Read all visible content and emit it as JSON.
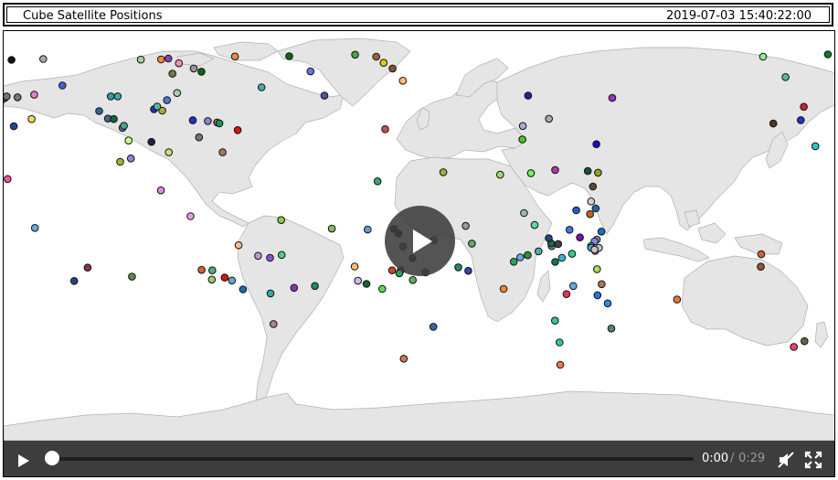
{
  "header": {
    "title": "Cube Satellite Positions",
    "timestamp": "2019-07-03 15:40:22:00"
  },
  "video": {
    "current_time": "0:00",
    "separator": "/",
    "duration": "0:29",
    "progress": 0,
    "muted": true
  },
  "icons": {
    "play_overlay": "play-icon",
    "play_control": "play-icon",
    "volume": "volume-muted-icon",
    "fullscreen": "fullscreen-icon"
  },
  "colors": {
    "ocean": "#ffffff",
    "land": "#e5e5e5",
    "land_stroke": "#b0b0b0",
    "controls_bg": "#3d3d3d",
    "overlay_bg": "#3c3c3c"
  },
  "satellites": [
    {
      "lon": -176.6,
      "lat": 78.1,
      "color": "#111111"
    },
    {
      "lon": -162.9,
      "lat": 78.5,
      "color": "#aaaaaa"
    },
    {
      "lon": -154.6,
      "lat": 66.8,
      "color": "#4466cc"
    },
    {
      "lon": -181.5,
      "lat": 59.4,
      "color": "#1a2a8c"
    },
    {
      "lon": -179.6,
      "lat": 61.2,
      "color": "#9a1f5a"
    },
    {
      "lon": -178.7,
      "lat": 62.0,
      "color": "#777777"
    },
    {
      "lon": -174.0,
      "lat": 61.6,
      "color": "#777777"
    },
    {
      "lon": -166.8,
      "lat": 62.7,
      "color": "#ee77cc"
    },
    {
      "lon": -167.9,
      "lat": 52.0,
      "color": "#eedd55"
    },
    {
      "lon": -175.6,
      "lat": 48.8,
      "color": "#224499"
    },
    {
      "lon": -178.3,
      "lat": 25.5,
      "color": "#ff4fa0"
    },
    {
      "lon": -166.5,
      "lat": 3.9,
      "color": "#66aadd"
    },
    {
      "lon": -143.7,
      "lat": -13.6,
      "color": "#883344"
    },
    {
      "lon": -124.5,
      "lat": -17.6,
      "color": "#668844"
    },
    {
      "lon": -149.5,
      "lat": -19.5,
      "color": "#224488"
    },
    {
      "lon": -125.0,
      "lat": 34.6,
      "color": "#8888cc"
    },
    {
      "lon": -129.6,
      "lat": 33.1,
      "color": "#99bb33"
    },
    {
      "lon": -108.6,
      "lat": 37.3,
      "color": "#c8e070"
    },
    {
      "lon": -112.0,
      "lat": 20.5,
      "color": "#dd88dd"
    },
    {
      "lon": -128.6,
      "lat": 48.1,
      "color": "#6677cc"
    },
    {
      "lon": -138.7,
      "lat": 55.5,
      "color": "#336699"
    },
    {
      "lon": -134.9,
      "lat": 52.2,
      "color": "#446688"
    },
    {
      "lon": -132.4,
      "lat": 52.0,
      "color": "#116633"
    },
    {
      "lon": -133.7,
      "lat": 62.0,
      "color": "#3399aa"
    },
    {
      "lon": -130.7,
      "lat": 62.0,
      "color": "#44aaaa"
    },
    {
      "lon": -128.0,
      "lat": 49.0,
      "color": "#44aa88"
    },
    {
      "lon": -126.0,
      "lat": 42.5,
      "color": "#ccff88"
    },
    {
      "lon": -120.7,
      "lat": 78.2,
      "color": "#aaccaa"
    },
    {
      "lon": -111.9,
      "lat": 78.3,
      "color": "#ee8844"
    },
    {
      "lon": -107.0,
      "lat": 72.0,
      "color": "#777744"
    },
    {
      "lon": -104.2,
      "lat": 76.6,
      "color": "#ff88bb"
    },
    {
      "lon": -97.8,
      "lat": 74.3,
      "color": "#999999"
    },
    {
      "lon": -108.8,
      "lat": 78.7,
      "color": "#8844aa"
    },
    {
      "lon": -94.5,
      "lat": 72.9,
      "color": "#116611"
    },
    {
      "lon": -80.0,
      "lat": 79.6,
      "color": "#ee8844"
    },
    {
      "lon": -68.5,
      "lat": 66.0,
      "color": "#44aaaa"
    },
    {
      "lon": -56.5,
      "lat": 79.7,
      "color": "#116611"
    },
    {
      "lon": -47.3,
      "lat": 73.0,
      "color": "#6677ee"
    },
    {
      "lon": -28.0,
      "lat": 80.4,
      "color": "#44aa44"
    },
    {
      "lon": -41.3,
      "lat": 62.3,
      "color": "#4455aa"
    },
    {
      "lon": -18.9,
      "lat": 79.5,
      "color": "#996633"
    },
    {
      "lon": -15.7,
      "lat": 76.8,
      "color": "#ddcc11"
    },
    {
      "lon": -11.8,
      "lat": 74.3,
      "color": "#885522"
    },
    {
      "lon": -7.4,
      "lat": 68.9,
      "color": "#ffbb77"
    },
    {
      "lon": -15.0,
      "lat": 47.5,
      "color": "#bb5555"
    },
    {
      "lon": -105.0,
      "lat": 63.5,
      "color": "#aaccaa"
    },
    {
      "lon": -95.5,
      "lat": 43.9,
      "color": "#777777"
    },
    {
      "lon": -91.7,
      "lat": 51.1,
      "color": "#8888cc"
    },
    {
      "lon": -87.7,
      "lat": 50.5,
      "color": "#aa7744"
    },
    {
      "lon": -98.2,
      "lat": 51.4,
      "color": "#2233bb"
    },
    {
      "lon": -116.1,
      "lat": 41.9,
      "color": "#222244"
    },
    {
      "lon": -115.0,
      "lat": 56.3,
      "color": "#2233aa"
    },
    {
      "lon": -109.4,
      "lat": 60.3,
      "color": "#5577cc"
    },
    {
      "lon": -111.4,
      "lat": 55.7,
      "color": "#aaaa44"
    },
    {
      "lon": -113.6,
      "lat": 57.5,
      "color": "#55bb99"
    },
    {
      "lon": -86.7,
      "lat": 50.1,
      "color": "#119955"
    },
    {
      "lon": -78.8,
      "lat": 47.1,
      "color": "#dd1111"
    },
    {
      "lon": -85.3,
      "lat": 37.3,
      "color": "#aa7755"
    },
    {
      "lon": -99.2,
      "lat": 9.1,
      "color": "#ee99dd"
    },
    {
      "lon": -94.4,
      "lat": -14.6,
      "color": "#cc6633"
    },
    {
      "lon": -89.8,
      "lat": -14.8,
      "color": "#55aa77"
    },
    {
      "lon": -90.0,
      "lat": -18.9,
      "color": "#99cc66"
    },
    {
      "lon": -81.3,
      "lat": -19.3,
      "color": "#66aacc"
    },
    {
      "lon": -84.4,
      "lat": -18.0,
      "color": "#dd1111"
    },
    {
      "lon": -76.5,
      "lat": -23.2,
      "color": "#2266aa"
    },
    {
      "lon": -63.3,
      "lat": -38.5,
      "color": "#aa8888"
    },
    {
      "lon": -60.0,
      "lat": 7.4,
      "color": "#88cc44"
    },
    {
      "lon": -59.8,
      "lat": -8.0,
      "color": "#55cc88"
    },
    {
      "lon": -78.4,
      "lat": -3.7,
      "color": "#ffbb88"
    },
    {
      "lon": -70.0,
      "lat": -8.4,
      "color": "#bb99cc"
    },
    {
      "lon": -64.8,
      "lat": -9.3,
      "color": "#8855cc"
    },
    {
      "lon": -54.4,
      "lat": -22.5,
      "color": "#8833bb"
    },
    {
      "lon": -64.6,
      "lat": -25.0,
      "color": "#33aaaa"
    },
    {
      "lon": -45.4,
      "lat": -21.7,
      "color": "#228866"
    },
    {
      "lon": -38.1,
      "lat": 3.6,
      "color": "#88bb55"
    },
    {
      "lon": -28.2,
      "lat": -13.1,
      "color": "#ffbb77"
    },
    {
      "lon": -26.8,
      "lat": -19.4,
      "color": "#ccbbee"
    },
    {
      "lon": -23.1,
      "lat": -20.8,
      "color": "#116633"
    },
    {
      "lon": -12.0,
      "lat": -14.8,
      "color": "#cc4422"
    },
    {
      "lon": -8.3,
      "lat": -14.8,
      "color": "#aa22cc"
    },
    {
      "lon": -3.1,
      "lat": -19.1,
      "color": "#66aa66"
    },
    {
      "lon": 5.8,
      "lat": -39.7,
      "color": "#3366aa"
    },
    {
      "lon": -7.0,
      "lat": -53.8,
      "color": "#cc7755"
    },
    {
      "lon": -22.6,
      "lat": 3.2,
      "color": "#6699cc"
    },
    {
      "lon": -16.3,
      "lat": -23.0,
      "color": "#55dd55"
    },
    {
      "lon": -11.3,
      "lat": 3.5,
      "color": "#333333"
    },
    {
      "lon": -9.3,
      "lat": 1.4,
      "color": "#222222"
    },
    {
      "lon": -7.3,
      "lat": -4.3,
      "color": "#2255cc"
    },
    {
      "lon": 6.1,
      "lat": -1.5,
      "color": "#bb44cc"
    },
    {
      "lon": -3.2,
      "lat": -9.4,
      "color": "#221155"
    },
    {
      "lon": 16.6,
      "lat": -13.5,
      "color": "#228866"
    },
    {
      "lon": 2.4,
      "lat": -15.7,
      "color": "#224499"
    },
    {
      "lon": 19.8,
      "lat": 4.8,
      "color": "#999999"
    },
    {
      "lon": 22.5,
      "lat": -3.0,
      "color": "#66aa66"
    },
    {
      "lon": 20.9,
      "lat": -15.0,
      "color": "#3344aa"
    },
    {
      "lon": -18.3,
      "lat": 24.5,
      "color": "#33aa66"
    },
    {
      "lon": -8.9,
      "lat": -16.1,
      "color": "#22aa55"
    },
    {
      "lon": 44.3,
      "lat": 43.0,
      "color": "#44cc22"
    },
    {
      "lon": 34.7,
      "lat": 27.4,
      "color": "#99dd66"
    },
    {
      "lon": 46.6,
      "lat": -8.1,
      "color": "#229933"
    },
    {
      "lon": 44.5,
      "lat": 48.9,
      "color": "#aaaadd"
    },
    {
      "lon": 48.0,
      "lat": 28.1,
      "color": "#77ee66"
    },
    {
      "lon": 45.0,
      "lat": 10.5,
      "color": "#99bbaa"
    },
    {
      "lon": 49.6,
      "lat": 5.2,
      "color": "#55dd99"
    },
    {
      "lon": 51.3,
      "lat": -6.4,
      "color": "#55aaaa"
    },
    {
      "lon": 57.0,
      "lat": -4.1,
      "color": "#669966"
    },
    {
      "lon": 59.8,
      "lat": -3.2,
      "color": "#444444"
    },
    {
      "lon": 56.8,
      "lat": -2.9,
      "color": "#226644"
    },
    {
      "lon": 58.5,
      "lat": 29.5,
      "color": "#bb33aa"
    },
    {
      "lon": 76.3,
      "lat": 40.9,
      "color": "#1111cc"
    },
    {
      "lon": 55.8,
      "lat": 52.1,
      "color": "#aaaaaa"
    },
    {
      "lon": 46.8,
      "lat": 62.3,
      "color": "#222299"
    },
    {
      "lon": 83.2,
      "lat": 61.3,
      "color": "#9933cc"
    },
    {
      "lon": 77.0,
      "lat": 28.3,
      "color": "#88aa22"
    },
    {
      "lon": 72.6,
      "lat": 29.0,
      "color": "#115533"
    },
    {
      "lon": 74.8,
      "lat": 22.2,
      "color": "#664433"
    },
    {
      "lon": 74.0,
      "lat": 15.6,
      "color": "#ddcccc"
    },
    {
      "lon": 73.6,
      "lat": 10.0,
      "color": "#bb6622"
    },
    {
      "lon": 76.0,
      "lat": 12.5,
      "color": "#2266aa"
    },
    {
      "lon": 78.5,
      "lat": 2.3,
      "color": "#2266cc"
    },
    {
      "lon": 76.5,
      "lat": -1.2,
      "color": "#8888cc"
    },
    {
      "lon": 75.5,
      "lat": -2.0,
      "color": "#8888dd"
    },
    {
      "lon": 74.0,
      "lat": -4.1,
      "color": "#33aaaa"
    },
    {
      "lon": 74.0,
      "lat": -4.8,
      "color": "#33aacc"
    },
    {
      "lon": 75.8,
      "lat": -6.2,
      "color": "#ffaaaa"
    },
    {
      "lon": 77.4,
      "lat": -4.9,
      "color": "#aacccc"
    },
    {
      "lon": 75.5,
      "lat": -5.7,
      "color": "#ddbbcc"
    },
    {
      "lon": 76.6,
      "lat": -14.3,
      "color": "#aadd55"
    },
    {
      "lon": 67.6,
      "lat": 11.7,
      "color": "#3355cc"
    },
    {
      "lon": 64.7,
      "lat": 3.1,
      "color": "#4477dd"
    },
    {
      "lon": 65.8,
      "lat": -7.5,
      "color": "#33cc88"
    },
    {
      "lon": 61.4,
      "lat": -9.3,
      "color": "#33bbcc"
    },
    {
      "lon": 58.5,
      "lat": -11.1,
      "color": "#117744"
    },
    {
      "lon": 69.2,
      "lat": -0.3,
      "color": "#7711aa"
    },
    {
      "lon": 55.7,
      "lat": -0.6,
      "color": "#224488"
    },
    {
      "lon": 43.4,
      "lat": -9.1,
      "color": "#66aaee"
    },
    {
      "lon": 40.6,
      "lat": -11.0,
      "color": "#22aa55"
    },
    {
      "lon": 10.1,
      "lat": 28.5,
      "color": "#aaaa44"
    },
    {
      "lon": 66.3,
      "lat": -21.7,
      "color": "#66aaee"
    },
    {
      "lon": 76.8,
      "lat": -25.8,
      "color": "#2277dd"
    },
    {
      "lon": 82.8,
      "lat": -40.5,
      "color": "#558866"
    },
    {
      "lon": 81.2,
      "lat": -29.4,
      "color": "#3388dd"
    },
    {
      "lon": 78.6,
      "lat": -20.9,
      "color": "#aa7755"
    },
    {
      "lon": 36.2,
      "lat": -23.0,
      "color": "#ee8833"
    },
    {
      "lon": 63.4,
      "lat": -25.3,
      "color": "#ee3355"
    },
    {
      "lon": 58.4,
      "lat": -37.0,
      "color": "#33cc88"
    },
    {
      "lon": 60.4,
      "lat": -46.6,
      "color": "#33cc88"
    },
    {
      "lon": 60.7,
      "lat": -56.5,
      "color": "#ee7744"
    },
    {
      "lon": 111.2,
      "lat": -27.7,
      "color": "#ee7733"
    },
    {
      "lon": 147.4,
      "lat": -13.2,
      "color": "#995533"
    },
    {
      "lon": 147.6,
      "lat": -7.7,
      "color": "#cc6633"
    },
    {
      "lon": 166.3,
      "lat": -46.1,
      "color": "#666644"
    },
    {
      "lon": 161.7,
      "lat": -48.6,
      "color": "#ee4466"
    },
    {
      "lon": 171.0,
      "lat": 40.0,
      "color": "#22cccc"
    },
    {
      "lon": 166.0,
      "lat": 57.4,
      "color": "#cc2233"
    },
    {
      "lon": 164.7,
      "lat": 51.5,
      "color": "#2233cc"
    },
    {
      "lon": 152.8,
      "lat": 50.0,
      "color": "#553322"
    },
    {
      "lon": 176.4,
      "lat": 80.5,
      "color": "#117733"
    },
    {
      "lon": 148.4,
      "lat": 79.5,
      "color": "#88ee88"
    },
    {
      "lon": 158.1,
      "lat": 70.5,
      "color": "#55bbaa"
    }
  ]
}
